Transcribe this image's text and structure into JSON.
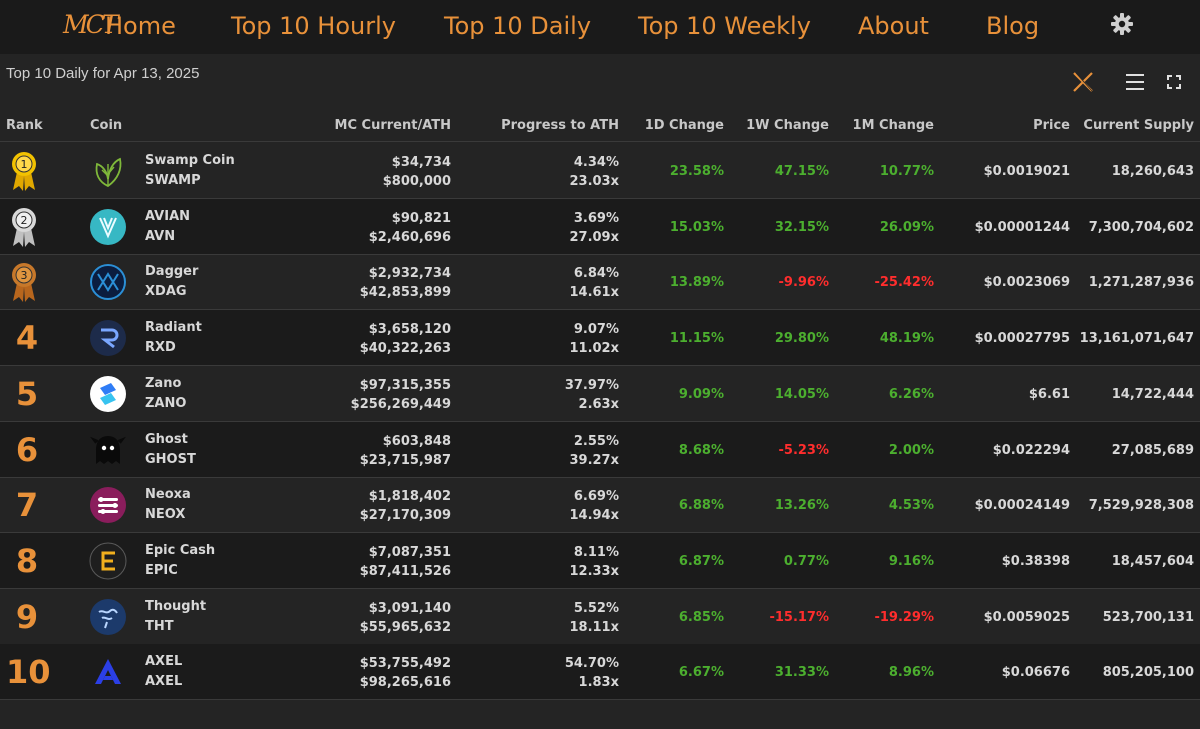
{
  "nav": {
    "logo": "MCT",
    "items": [
      "Home",
      "Top 10 Hourly",
      "Top 10 Daily",
      "Top 10 Weekly",
      "About",
      "Blog"
    ]
  },
  "page": {
    "subtitle": "Top 10 Daily for Apr 13, 2025"
  },
  "colors": {
    "accent": "#e8913a",
    "positive": "#4caf2f",
    "negative": "#ff2d2d"
  },
  "table": {
    "headers": {
      "rank": "Rank",
      "coin": "Coin",
      "mc": "MC Current/ATH",
      "progress": "Progress to ATH",
      "d1": "1D Change",
      "w1": "1W Change",
      "m1": "1M Change",
      "price": "Price",
      "supply": "Current Supply"
    },
    "rows": [
      {
        "rank": "1",
        "name": "Swamp Coin",
        "symbol": "SWAMP",
        "mc_current": "$34,734",
        "mc_ath": "$800,000",
        "progress_pct": "4.34%",
        "progress_x": "23.03x",
        "d1": "23.58%",
        "w1": "47.15%",
        "m1": "10.77%",
        "price": "$0.0019021",
        "supply": "18,260,643",
        "icon": "swamp-leaf-icon"
      },
      {
        "rank": "2",
        "name": "AVIAN",
        "symbol": "AVN",
        "mc_current": "$90,821",
        "mc_ath": "$2,460,696",
        "progress_pct": "3.69%",
        "progress_x": "27.09x",
        "d1": "15.03%",
        "w1": "32.15%",
        "m1": "26.09%",
        "price": "$0.00001244",
        "supply": "7,300,704,602",
        "icon": "avian-icon"
      },
      {
        "rank": "3",
        "name": "Dagger",
        "symbol": "XDAG",
        "mc_current": "$2,932,734",
        "mc_ath": "$42,853,899",
        "progress_pct": "6.84%",
        "progress_x": "14.61x",
        "d1": "13.89%",
        "w1": "-9.96%",
        "m1": "-25.42%",
        "price": "$0.0023069",
        "supply": "1,271,287,936",
        "icon": "dagger-icon"
      },
      {
        "rank": "4",
        "name": "Radiant",
        "symbol": "RXD",
        "mc_current": "$3,658,120",
        "mc_ath": "$40,322,263",
        "progress_pct": "9.07%",
        "progress_x": "11.02x",
        "d1": "11.15%",
        "w1": "29.80%",
        "m1": "48.19%",
        "price": "$0.00027795",
        "supply": "13,161,071,647",
        "icon": "radiant-icon"
      },
      {
        "rank": "5",
        "name": "Zano",
        "symbol": "ZANO",
        "mc_current": "$97,315,355",
        "mc_ath": "$256,269,449",
        "progress_pct": "37.97%",
        "progress_x": "2.63x",
        "d1": "9.09%",
        "w1": "14.05%",
        "m1": "6.26%",
        "price": "$6.61",
        "supply": "14,722,444",
        "icon": "zano-icon"
      },
      {
        "rank": "6",
        "name": "Ghost",
        "symbol": "GHOST",
        "mc_current": "$603,848",
        "mc_ath": "$23,715,987",
        "progress_pct": "2.55%",
        "progress_x": "39.27x",
        "d1": "8.68%",
        "w1": "-5.23%",
        "m1": "2.00%",
        "price": "$0.022294",
        "supply": "27,085,689",
        "icon": "ghost-icon"
      },
      {
        "rank": "7",
        "name": "Neoxa",
        "symbol": "NEOX",
        "mc_current": "$1,818,402",
        "mc_ath": "$27,170,309",
        "progress_pct": "6.69%",
        "progress_x": "14.94x",
        "d1": "6.88%",
        "w1": "13.26%",
        "m1": "4.53%",
        "price": "$0.00024149",
        "supply": "7,529,928,308",
        "icon": "neoxa-icon"
      },
      {
        "rank": "8",
        "name": "Epic Cash",
        "symbol": "EPIC",
        "mc_current": "$7,087,351",
        "mc_ath": "$87,411,526",
        "progress_pct": "8.11%",
        "progress_x": "12.33x",
        "d1": "6.87%",
        "w1": "0.77%",
        "m1": "9.16%",
        "price": "$0.38398",
        "supply": "18,457,604",
        "icon": "epic-cash-icon"
      },
      {
        "rank": "9",
        "name": "Thought",
        "symbol": "THT",
        "mc_current": "$3,091,140",
        "mc_ath": "$55,965,632",
        "progress_pct": "5.52%",
        "progress_x": "18.11x",
        "d1": "6.85%",
        "w1": "-15.17%",
        "m1": "-19.29%",
        "price": "$0.0059025",
        "supply": "523,700,131",
        "icon": "thought-icon"
      },
      {
        "rank": "10",
        "name": "AXEL",
        "symbol": "AXEL",
        "mc_current": "$53,755,492",
        "mc_ath": "$98,265,616",
        "progress_pct": "54.70%",
        "progress_x": "1.83x",
        "d1": "6.67%",
        "w1": "31.33%",
        "m1": "8.96%",
        "price": "$0.06676",
        "supply": "805,205,100",
        "icon": "axel-icon"
      }
    ]
  }
}
